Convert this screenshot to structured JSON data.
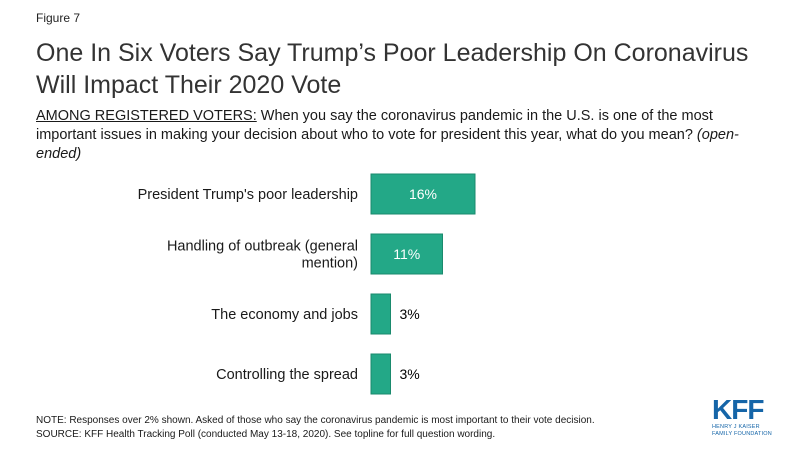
{
  "figure_label": "Figure 7",
  "title": "One In Six Voters Say Trump’s Poor Leadership On Coronavirus Will Impact Their 2020 Vote",
  "subtitle": {
    "lead": "AMONG REGISTERED VOTERS:",
    "text": " When you say the coronavirus pandemic in the U.S. is one of the most important issues in making your decision about who to vote for president this year, what do you mean? ",
    "note": "(open-ended)"
  },
  "chart_data": {
    "type": "bar",
    "orientation": "horizontal",
    "categories": [
      "President Trump's poor leadership",
      "Handling of outbreak (general mention)",
      "The economy and jobs",
      "Controlling the spread"
    ],
    "values": [
      16,
      11,
      3,
      3
    ],
    "data_labels": [
      "16%",
      "11%",
      "3%",
      "3%"
    ],
    "title": "",
    "xlabel": "",
    "ylabel": "",
    "xlim": [
      0,
      100
    ],
    "grid": false,
    "colors": {
      "bar": "#23a887",
      "bar_border": "#1a8a6d",
      "label_inside": "#ffffff",
      "label_outside": "#000000"
    }
  },
  "footnotes": {
    "note": "NOTE: Responses over 2% shown. Asked of those who say the coronavirus pandemic is most important to their vote decision.",
    "source": "SOURCE: KFF Health Tracking Poll (conducted May 13-18, 2020). See topline for full question wording."
  },
  "logo": {
    "main": "KFF",
    "sub": "HENRY J KAISER\nFAMILY FOUNDATION"
  }
}
